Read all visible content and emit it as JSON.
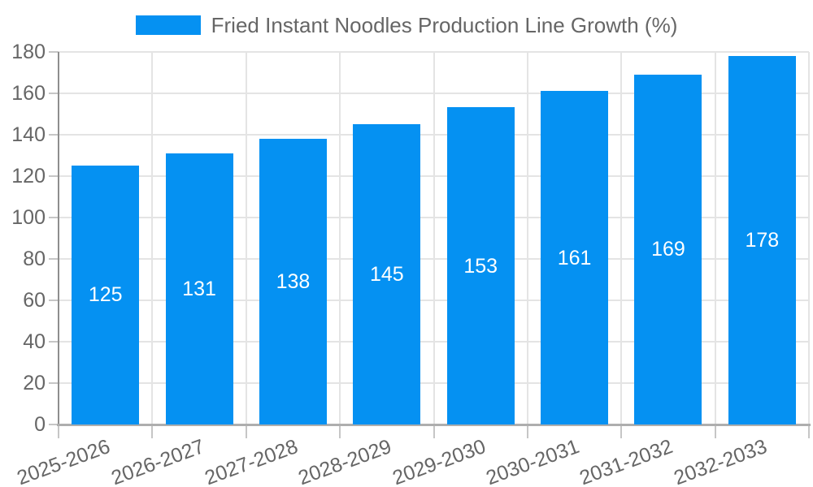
{
  "chart": {
    "legend_label": "Fried Instant Noodles Production Line Growth (%)"
  },
  "chart_data": {
    "type": "bar",
    "title": "Fried Instant Noodles Production Line Growth (%)",
    "categories": [
      "2025-2026",
      "2026-2027",
      "2027-2028",
      "2028-2029",
      "2029-2030",
      "2030-2031",
      "2031-2032",
      "2032-2033"
    ],
    "values": [
      125,
      131,
      138,
      145,
      153,
      161,
      169,
      178
    ],
    "xlabel": "",
    "ylabel": "",
    "ylim": [
      0,
      180
    ],
    "ytick_step": 20,
    "ytick_labels": [
      "0",
      "20",
      "40",
      "60",
      "80",
      "100",
      "120",
      "140",
      "160",
      "180"
    ],
    "grid": true,
    "legend_position": "top-center",
    "x_label_rotation_deg": -20,
    "bar_labels_inside": true,
    "colors": {
      "bar": "#0591f2",
      "bar_label": "#ffffff",
      "axis_text": "#666666",
      "gridline": "#e4e4e4",
      "y_axis_line": "#8e8e8e",
      "x_axis_line": "#aeaeae",
      "tick": "#c6c6c6"
    }
  }
}
